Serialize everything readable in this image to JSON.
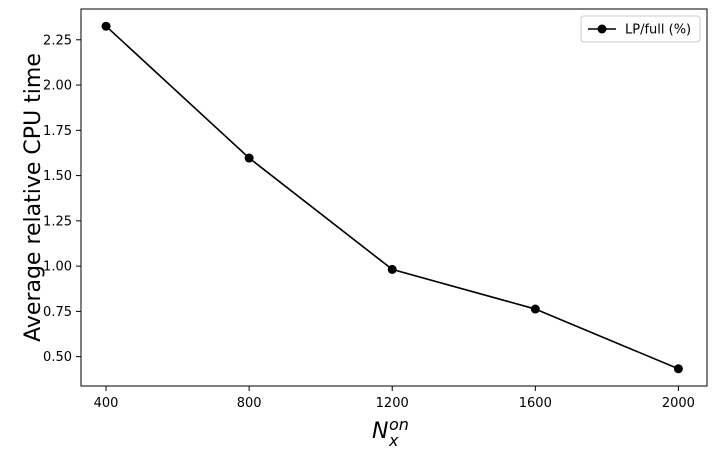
{
  "chart_data": {
    "type": "line",
    "title": "",
    "xlabel_base": "N",
    "xlabel_sub": "x",
    "xlabel_sup": "on",
    "ylabel": "Average relative CPU time",
    "x": [
      400,
      800,
      1200,
      1600,
      2000
    ],
    "series": [
      {
        "name": "LP/full (%)",
        "values": [
          2.325,
          1.597,
          0.982,
          0.763,
          0.433
        ]
      }
    ],
    "xticks": [
      400,
      800,
      1200,
      1600,
      2000
    ],
    "yticks": [
      0.5,
      0.75,
      1.0,
      1.25,
      1.5,
      1.75,
      2.0,
      2.25
    ],
    "xlim": [
      330,
      2080
    ],
    "ylim": [
      0.338,
      2.42
    ],
    "grid": false,
    "legend_position": "top-right",
    "line_color": "#000000"
  }
}
